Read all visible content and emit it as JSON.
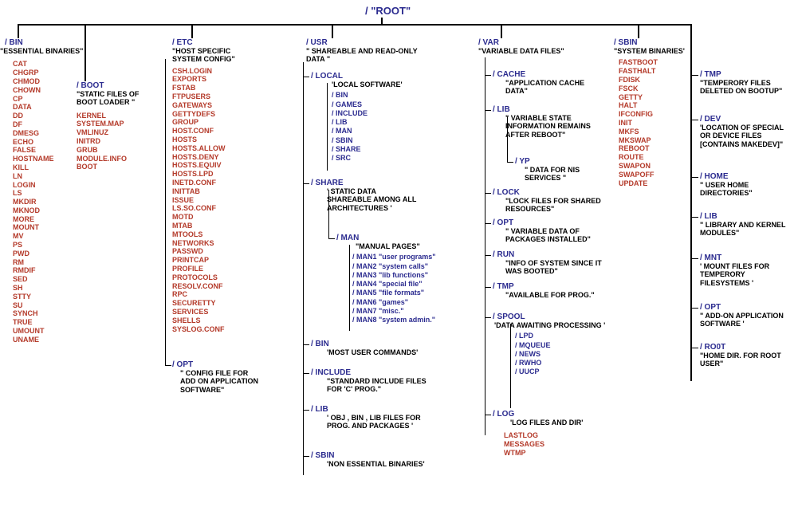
{
  "colors": {
    "dir": "#2b2b8f",
    "desc": "#000000",
    "entry": "#b43a2a",
    "bg": "#ffffff",
    "line": "#000000"
  },
  "font": {
    "family": "Arial",
    "title_size_pt": 10,
    "body_size_pt": 7,
    "root_size_pt": 10
  },
  "root": {
    "label": "/   \"ROOT\""
  },
  "bin": {
    "title": "/ BIN",
    "desc": "\"ESSENTIAL BINARIES\"",
    "entries": [
      "CAT",
      "CHGRP",
      "CHMOD",
      "CHOWN",
      "CP",
      "DATA",
      "DD",
      "DF",
      "DMESG",
      "ECHO",
      "FALSE",
      "HOSTNAME",
      "KILL",
      "LN",
      "LOGIN",
      "LS",
      "MKDIR",
      "MKNOD",
      "MORE",
      "MOUNT",
      "MV",
      "PS",
      "PWD",
      "RM",
      "RMDIF",
      "SED",
      "SH",
      "STTY",
      "SU",
      "SYNCH",
      "TRUE",
      "UMOUNT",
      "UNAME"
    ]
  },
  "boot": {
    "title": "/ BOOT",
    "desc": "\"STATIC FILES OF BOOT LOADER \"",
    "entries": [
      "KERNEL",
      "SYSTEM.MAP",
      "VMLINUZ",
      "INITRD",
      "GRUB",
      "MODULE.INFO",
      "BOOT"
    ]
  },
  "etc": {
    "title": "/ ETC",
    "desc": "\"HOST SPECIFIC SYSTEM CONFIG\"",
    "entries": [
      "CSH.LOGIN",
      "EXPORTS",
      "FSTAB",
      "FTPUSERS",
      "GATEWAYS",
      "GETTYDEFS",
      "GROUP",
      "HOST.CONF",
      "HOSTS",
      "HOSTS.ALLOW",
      "HOSTS.DENY",
      "HOSTS.EQUIV",
      "HOSTS.LPD",
      "INETD.CONF",
      "INITTAB",
      "ISSUE",
      "LS.SO.CONF",
      "MOTD",
      "MTAB",
      "MTOOLS",
      "NETWORKS",
      "PASSWD",
      "PRINTCAP",
      "PROFILE",
      "PROTOCOLS",
      "RESOLV.CONF",
      "RPC",
      "SECURETTY",
      "SERVICES",
      "SHELLS",
      "SYSLOG.CONF"
    ]
  },
  "etc_opt": {
    "title": "/ OPT",
    "desc": "\" CONFIG FILE FOR ADD ON APPLICATION SOFTWARE\""
  },
  "usr": {
    "title": "/ USR",
    "desc": "\" SHAREABLE AND READ-ONLY DATA \"",
    "local": {
      "title": "/ LOCAL",
      "desc": "'LOCAL SOFTWARE'",
      "subs": [
        "/ BIN",
        "/ GAMES",
        "/ INCLUDE",
        "/ LIB",
        "/ MAN",
        "/ SBIN",
        "/ SHARE",
        "/ SRC"
      ]
    },
    "share": {
      "title": "/ SHARE",
      "desc": "' STATIC DATA SHAREABLE AMONG ALL ARCHITECTURES '"
    },
    "man": {
      "title": "/ MAN",
      "desc": "\"MANUAL PAGES\"",
      "items": [
        "/ MAN1 \"user programs\"",
        "/ MAN2 \"system calls\"",
        "/ MAN3 \"lib functions\"",
        "/ MAN4 \"special file\"",
        "/ MAN5 \"file formats\"",
        "/ MAN6 \"games\"",
        "/ MAN7 \"misc.\"",
        "/ MAN8 \"system admin.\""
      ]
    },
    "bin2": {
      "title": "/ BIN",
      "desc": "'MOST USER COMMANDS'"
    },
    "include": {
      "title": "/ INCLUDE",
      "desc": "\"STANDARD INCLUDE FILES FOR  'C' PROG.\""
    },
    "lib": {
      "title": "/ LIB",
      "desc": "' OBJ , BIN , LIB FILES FOR PROG. AND PACKAGES '"
    },
    "sbin": {
      "title": "/ SBIN",
      "desc": "'NON ESSENTIAL BINARIES'"
    }
  },
  "var": {
    "title": "/ VAR",
    "desc": "\"VARIABLE DATA FILES\"",
    "cache": {
      "title": "/ CACHE",
      "desc": "\"APPLICATION CACHE DATA\""
    },
    "lib": {
      "title": "/ LIB",
      "desc": "\" VARIABLE STATE INFORMATION REMAINS  AFTER REBOOT\""
    },
    "yp": {
      "title": "/ YP",
      "desc": "\" DATA FOR NIS SERVICES \""
    },
    "lock": {
      "title": "/ LOCK",
      "desc": "\"LOCK FILES FOR SHARED RESOURCES\""
    },
    "opt": {
      "title": "/ OPT",
      "desc": "\" VARIABLE DATA OF PACKAGES  INSTALLED\""
    },
    "run": {
      "title": "/ RUN",
      "desc": "\"INFO OF SYSTEM SINCE  IT WAS  BOOTED\""
    },
    "tmp": {
      "title": "/ TMP",
      "desc": "\"AVAILABLE FOR PROG.\""
    },
    "spool": {
      "title": "/ SPOOL",
      "desc": "'DATA AWAITING PROCESSING '",
      "subs": [
        "/ LPD",
        "/ MQUEUE",
        "/ NEWS",
        "/ RWHO",
        "/ UUCP"
      ]
    },
    "log": {
      "title": "/ LOG",
      "desc": "'LOG FILES AND DIR'",
      "entries": [
        "LASTLOG",
        "MESSAGES",
        "WTMP"
      ]
    }
  },
  "sbin": {
    "title": "/ SBIN",
    "desc": "\"SYSTEM BINARIES'",
    "entries": [
      "FASTBOOT",
      "FASTHALT",
      "FDISK",
      "FSCK",
      "GETTY",
      "HALT",
      "IFCONFIG",
      "INIT",
      "MKFS",
      "MKSWAP",
      "REBOOT",
      "ROUTE",
      "SWAPON",
      "SWAPOFF",
      "UPDATE"
    ]
  },
  "side": {
    "tmp": {
      "title": "/ TMP",
      "desc": "\"TEMPERORY FILES DELETED ON BOOTUP\""
    },
    "dev": {
      "title": "/ DEV",
      "desc": "'LOCATION OF SPECIAL OR DEVICE FILES [CONTAINS MAKEDEV]\""
    },
    "home": {
      "title": "/ HOME",
      "desc": "\" USER HOME DIRECTORIES\""
    },
    "lib": {
      "title": "/ LIB",
      "desc": "\"  LIBRARY AND KERNEL MODULES\""
    },
    "mnt": {
      "title": "/ MNT",
      "desc": "'  MOUNT FILES FOR TEMPERORY FILESYSTEMS '"
    },
    "opt": {
      "title": "/ OPT",
      "desc": "\"  ADD-ON APPLICATION SOFTWARE '"
    },
    "root": {
      "title": "/ RO0T",
      "desc": "\"HOME DIR. FOR ROOT USER\""
    }
  }
}
